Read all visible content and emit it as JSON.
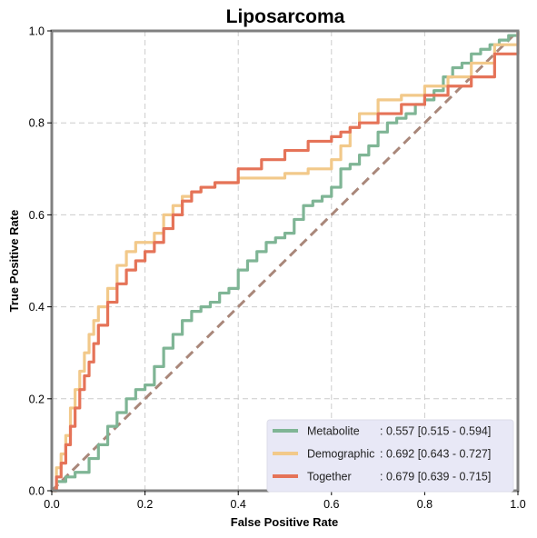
{
  "chart_data": {
    "type": "line",
    "title": "Liposarcoma",
    "xlabel": "False Positive Rate",
    "ylabel": "True Positive Rate",
    "xlim": [
      0,
      1
    ],
    "ylim": [
      0,
      1
    ],
    "xticks": [
      "0.0",
      "0.2",
      "0.4",
      "0.6",
      "0.8",
      "1.0"
    ],
    "yticks": [
      "0.0",
      "0.2",
      "0.4",
      "0.6",
      "0.8",
      "1.0"
    ],
    "grid": true,
    "legend_position": "lower-right",
    "diagonal_color": "#a9877a",
    "series": [
      {
        "name": "Metabolite",
        "auc_text": ": 0.557 [0.515 - 0.594]",
        "color": "#7fb595",
        "x": [
          0.0,
          0.01,
          0.03,
          0.05,
          0.08,
          0.1,
          0.12,
          0.14,
          0.16,
          0.18,
          0.2,
          0.22,
          0.24,
          0.26,
          0.28,
          0.3,
          0.32,
          0.34,
          0.36,
          0.38,
          0.4,
          0.42,
          0.44,
          0.46,
          0.48,
          0.5,
          0.52,
          0.54,
          0.56,
          0.58,
          0.6,
          0.62,
          0.64,
          0.66,
          0.68,
          0.7,
          0.72,
          0.74,
          0.76,
          0.78,
          0.8,
          0.82,
          0.84,
          0.86,
          0.88,
          0.9,
          0.92,
          0.94,
          0.96,
          0.98,
          1.0
        ],
        "y": [
          0.0,
          0.02,
          0.03,
          0.04,
          0.07,
          0.1,
          0.14,
          0.17,
          0.2,
          0.22,
          0.23,
          0.27,
          0.31,
          0.34,
          0.37,
          0.39,
          0.4,
          0.41,
          0.43,
          0.44,
          0.48,
          0.5,
          0.52,
          0.54,
          0.55,
          0.56,
          0.59,
          0.62,
          0.63,
          0.64,
          0.66,
          0.7,
          0.71,
          0.73,
          0.75,
          0.78,
          0.8,
          0.81,
          0.82,
          0.84,
          0.85,
          0.87,
          0.9,
          0.92,
          0.93,
          0.95,
          0.96,
          0.97,
          0.98,
          0.99,
          1.0
        ]
      },
      {
        "name": "Demographic",
        "auc_text": ": 0.692 [0.643 - 0.727]",
        "color": "#f2c98a",
        "x": [
          0.0,
          0.01,
          0.02,
          0.03,
          0.04,
          0.05,
          0.06,
          0.07,
          0.08,
          0.09,
          0.1,
          0.12,
          0.14,
          0.16,
          0.18,
          0.2,
          0.22,
          0.24,
          0.26,
          0.28,
          0.3,
          0.32,
          0.35,
          0.4,
          0.45,
          0.5,
          0.55,
          0.6,
          0.62,
          0.64,
          0.66,
          0.7,
          0.75,
          0.8,
          0.85,
          0.9,
          0.95,
          1.0
        ],
        "y": [
          0.0,
          0.05,
          0.08,
          0.12,
          0.18,
          0.22,
          0.26,
          0.3,
          0.34,
          0.37,
          0.4,
          0.44,
          0.49,
          0.52,
          0.54,
          0.54,
          0.56,
          0.6,
          0.62,
          0.64,
          0.65,
          0.66,
          0.67,
          0.68,
          0.68,
          0.69,
          0.7,
          0.72,
          0.75,
          0.79,
          0.82,
          0.85,
          0.86,
          0.88,
          0.9,
          0.93,
          0.97,
          1.0
        ]
      },
      {
        "name": "Together",
        "auc_text": ": 0.679 [0.639 - 0.715]",
        "color": "#e57358",
        "x": [
          0.0,
          0.01,
          0.02,
          0.03,
          0.04,
          0.05,
          0.06,
          0.07,
          0.08,
          0.09,
          0.1,
          0.12,
          0.14,
          0.16,
          0.18,
          0.2,
          0.22,
          0.24,
          0.26,
          0.28,
          0.3,
          0.32,
          0.35,
          0.4,
          0.45,
          0.5,
          0.55,
          0.6,
          0.62,
          0.64,
          0.66,
          0.7,
          0.75,
          0.8,
          0.85,
          0.9,
          0.95,
          1.0
        ],
        "y": [
          0.0,
          0.03,
          0.06,
          0.1,
          0.14,
          0.18,
          0.22,
          0.25,
          0.28,
          0.32,
          0.36,
          0.41,
          0.45,
          0.48,
          0.5,
          0.52,
          0.54,
          0.57,
          0.6,
          0.63,
          0.65,
          0.66,
          0.67,
          0.7,
          0.72,
          0.74,
          0.76,
          0.77,
          0.78,
          0.79,
          0.8,
          0.82,
          0.84,
          0.86,
          0.88,
          0.9,
          0.95,
          1.0
        ]
      }
    ]
  }
}
